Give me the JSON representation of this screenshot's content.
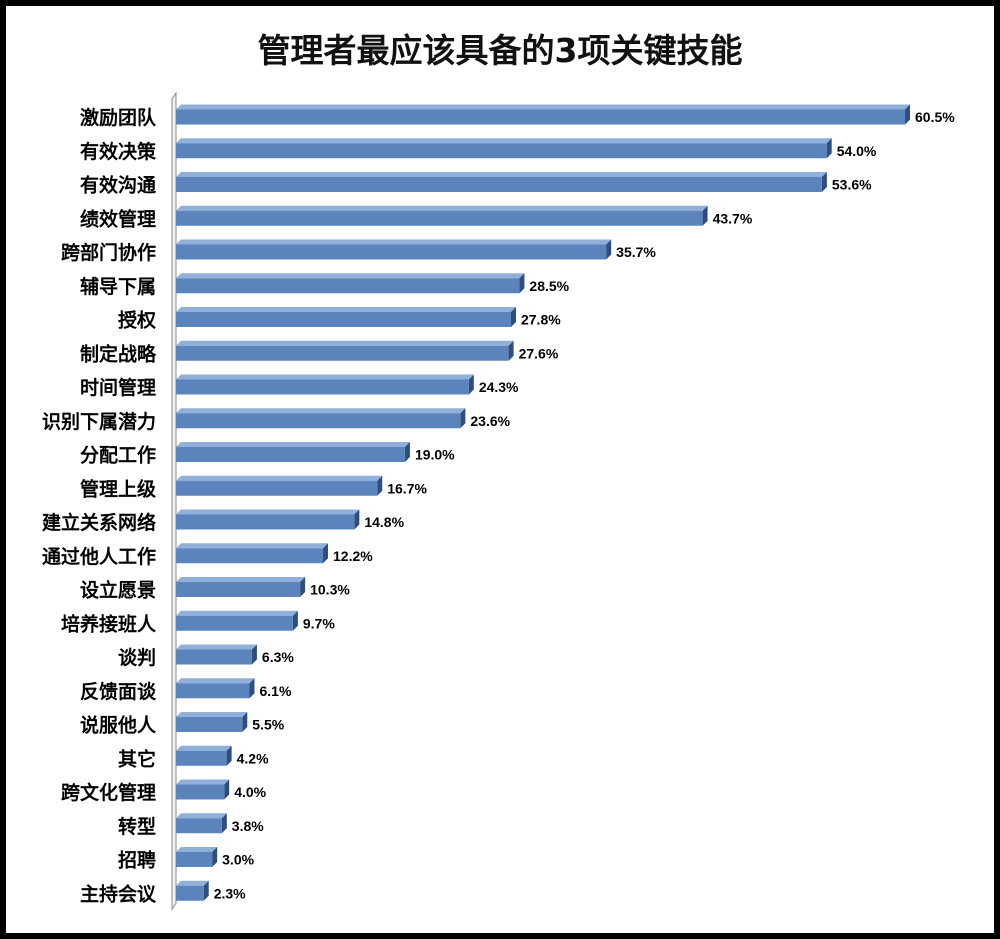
{
  "chart_data": {
    "type": "bar",
    "orientation": "horizontal",
    "title": "管理者最应该具备的3项关键技能",
    "categories": [
      "激励团队",
      "有效决策",
      "有效沟通",
      "绩效管理",
      "跨部门协作",
      "辅导下属",
      "授权",
      "制定战略",
      "时间管理",
      "识别下属潜力",
      "分配工作",
      "管理上级",
      "建立关系网络",
      "通过他人工作",
      "设立愿景",
      "培养接班人",
      "谈判",
      "反馈面谈",
      "说服他人",
      "其它",
      "跨文化管理",
      "转型",
      "招聘",
      "主持会议"
    ],
    "values": [
      60.5,
      54.0,
      53.6,
      43.7,
      35.7,
      28.5,
      27.8,
      27.6,
      24.3,
      23.6,
      19.0,
      16.7,
      14.8,
      12.2,
      10.3,
      9.7,
      6.3,
      6.1,
      5.5,
      4.2,
      4.0,
      3.8,
      3.0,
      2.3
    ],
    "value_labels": [
      "60.5%",
      "54.0%",
      "53.6%",
      "43.7%",
      "35.7%",
      "28.5%",
      "27.8%",
      "27.6%",
      "24.3%",
      "23.6%",
      "19.0%",
      "16.7%",
      "14.8%",
      "12.2%",
      "10.3%",
      "9.7%",
      "6.3%",
      "6.1%",
      "5.5%",
      "4.2%",
      "4.0%",
      "3.8%",
      "3.0%",
      "2.3%"
    ],
    "xlim": [
      0,
      61
    ],
    "grid": false,
    "legend": "none",
    "colors": {
      "bar": "#5b84bd",
      "bar_top": "#8fb0d9",
      "bar_shadow": "#2f4e7d",
      "axis": "#888888"
    }
  }
}
